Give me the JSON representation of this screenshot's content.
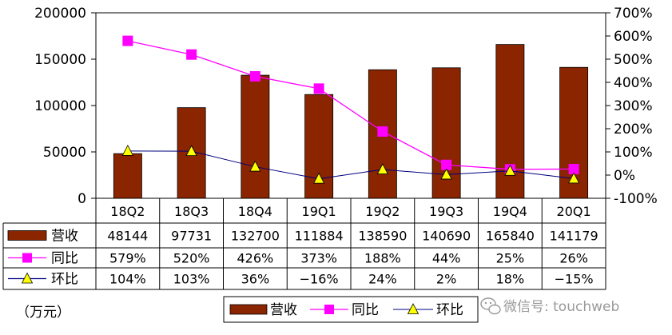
{
  "chart_data": {
    "type": "bar",
    "categories": [
      "18Q2",
      "18Q3",
      "18Q4",
      "19Q1",
      "19Q2",
      "19Q3",
      "19Q4",
      "20Q1"
    ],
    "series": [
      {
        "name": "营收",
        "kind": "bar",
        "axis": "left",
        "color": "#8B2500",
        "values": [
          48144,
          97731,
          132700,
          111884,
          138590,
          140690,
          165840,
          141179
        ],
        "labels": [
          "48144",
          "97731",
          "132700",
          "111884",
          "138590",
          "140690",
          "165840",
          "141179"
        ]
      },
      {
        "name": "同比",
        "kind": "line",
        "axis": "right",
        "color": "#FF00FF",
        "marker": "square",
        "values": [
          579,
          520,
          426,
          373,
          188,
          44,
          25,
          26
        ],
        "labels": [
          "579%",
          "520%",
          "426%",
          "373%",
          "188%",
          "44%",
          "25%",
          "26%"
        ]
      },
      {
        "name": "环比",
        "kind": "line",
        "axis": "right",
        "color": "#000080",
        "marker": "triangle",
        "values": [
          104,
          103,
          36,
          -16,
          24,
          2,
          18,
          -15
        ],
        "labels": [
          "104%",
          "103%",
          "36%",
          "−16%",
          "24%",
          "2%",
          "18%",
          "−15%"
        ]
      }
    ],
    "y_left": {
      "lim": [
        0,
        200000
      ],
      "ticks": [
        "0",
        "50000",
        "100000",
        "150000",
        "200000"
      ]
    },
    "y_right": {
      "lim": [
        -100,
        700
      ],
      "ticks": [
        "-100%",
        "0%",
        "100%",
        "200%",
        "300%",
        "400%",
        "500%",
        "600%",
        "700%"
      ]
    },
    "unit_label": "（万元）",
    "grid": false,
    "legend_position": "bottom",
    "data_table": true
  },
  "watermark": {
    "text": "微信号: touchweb",
    "icon": "wechat-icon"
  }
}
